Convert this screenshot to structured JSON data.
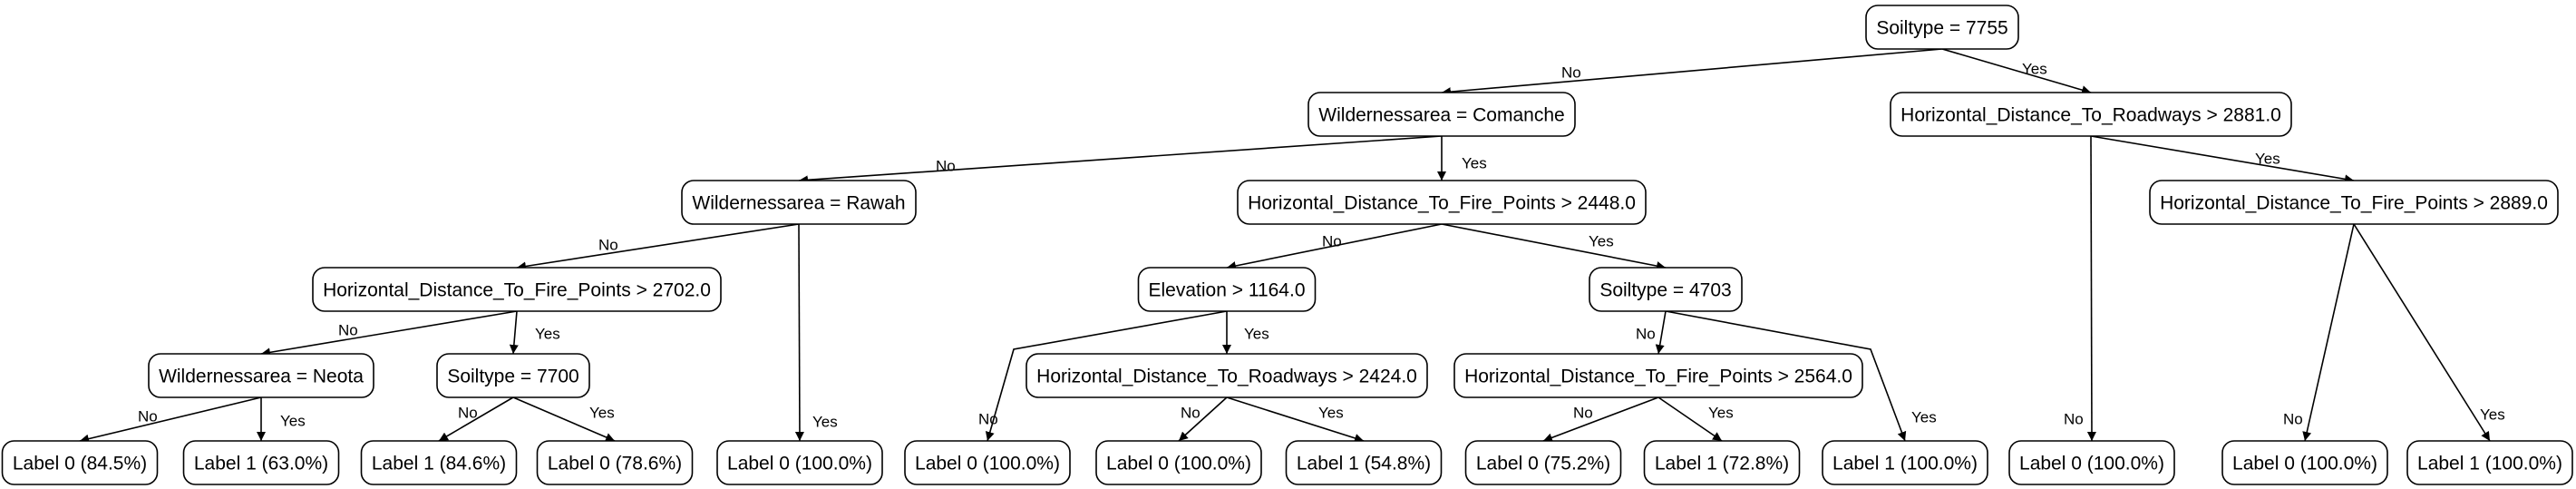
{
  "nodes": {
    "n0": "Soiltype = 7755",
    "n1": "Wildernessarea = Comanche",
    "n2": "Horizontal_Distance_To_Roadways > 2881.0",
    "n3": "Wildernessarea = Rawah",
    "n4": "Horizontal_Distance_To_Fire_Points > 2448.0",
    "n5": "Horizontal_Distance_To_Fire_Points > 2889.0",
    "n6": "Horizontal_Distance_To_Fire_Points > 2702.0",
    "n7": "Elevation > 1164.0",
    "n8": "Soiltype = 4703",
    "n9": "Wildernessarea = Neota",
    "n10": "Soiltype = 7700",
    "n11": "Horizontal_Distance_To_Roadways > 2424.0",
    "n12": "Horizontal_Distance_To_Fire_Points > 2564.0",
    "l0": "Label 0 (84.5%)",
    "l1": "Label 1 (63.0%)",
    "l2": "Label 1 (84.6%)",
    "l3": "Label 0 (78.6%)",
    "l4": "Label 0 (100.0%)",
    "l5": "Label 0 (100.0%)",
    "l6": "Label 0 (100.0%)",
    "l7": "Label 1 (54.8%)",
    "l8": "Label 0 (75.2%)",
    "l9": "Label 1 (72.8%)",
    "l10": "Label 1 (100.0%)",
    "l11": "Label 0 (100.0%)",
    "l12": "Label 0 (100.0%)",
    "l13": "Label 1 (100.0%)"
  },
  "edges": [
    {
      "from": "n0",
      "to": "n1",
      "label": "No"
    },
    {
      "from": "n0",
      "to": "n2",
      "label": "Yes"
    },
    {
      "from": "n1",
      "to": "n3",
      "label": "No"
    },
    {
      "from": "n1",
      "to": "n4",
      "label": "Yes"
    },
    {
      "from": "n2",
      "to": "l11",
      "label": "No"
    },
    {
      "from": "n2",
      "to": "n5",
      "label": "Yes"
    },
    {
      "from": "n3",
      "to": "n6",
      "label": "No"
    },
    {
      "from": "n3",
      "to": "l4",
      "label": "Yes"
    },
    {
      "from": "n4",
      "to": "n7",
      "label": "No"
    },
    {
      "from": "n4",
      "to": "n8",
      "label": "Yes"
    },
    {
      "from": "n5",
      "to": "l12",
      "label": "No"
    },
    {
      "from": "n5",
      "to": "l13",
      "label": "Yes"
    },
    {
      "from": "n6",
      "to": "n9",
      "label": "No"
    },
    {
      "from": "n6",
      "to": "n10",
      "label": "Yes"
    },
    {
      "from": "n7",
      "to": "l5",
      "label": "No"
    },
    {
      "from": "n7",
      "to": "n11",
      "label": "Yes"
    },
    {
      "from": "n8",
      "to": "n12",
      "label": "No"
    },
    {
      "from": "n8",
      "to": "l10",
      "label": "Yes"
    },
    {
      "from": "n9",
      "to": "l0",
      "label": "No"
    },
    {
      "from": "n9",
      "to": "l1",
      "label": "Yes"
    },
    {
      "from": "n10",
      "to": "l2",
      "label": "No"
    },
    {
      "from": "n10",
      "to": "l3",
      "label": "Yes"
    },
    {
      "from": "n11",
      "to": "l6",
      "label": "No"
    },
    {
      "from": "n11",
      "to": "l7",
      "label": "Yes"
    },
    {
      "from": "n12",
      "to": "l8",
      "label": "No"
    },
    {
      "from": "n12",
      "to": "l9",
      "label": "Yes"
    }
  ]
}
